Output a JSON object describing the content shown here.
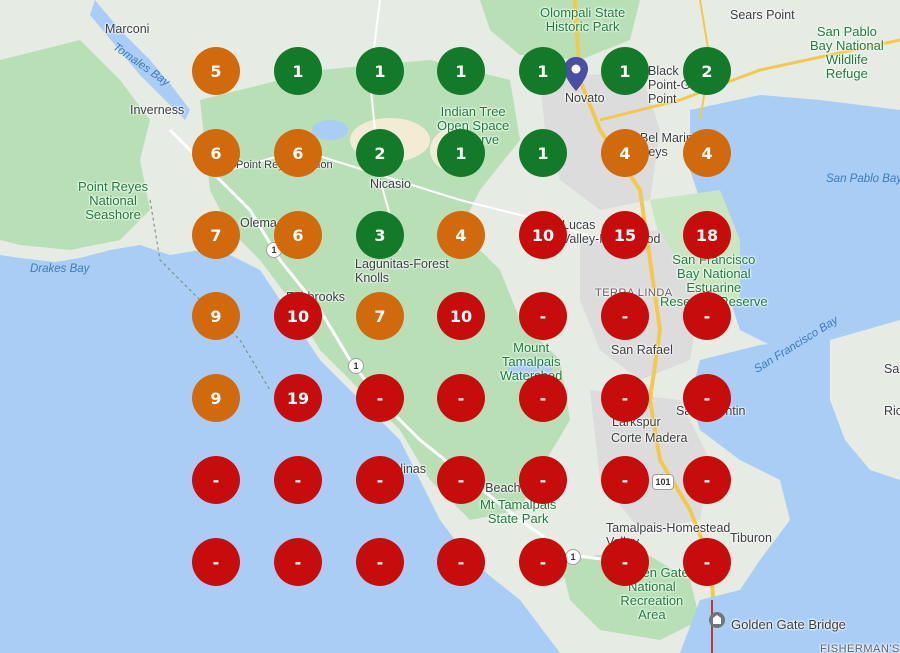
{
  "colors": {
    "green": "#137a2a",
    "orange": "#d06a0c",
    "red": "#c70c0c",
    "water": "#a9cdf5",
    "land": "#e6ebe3",
    "park": "#b9dfb7"
  },
  "labels": {
    "marconi": "Marconi",
    "tomales_bay": "Tomales Bay",
    "inverness": "Inverness",
    "point_reyes_1": "Point Reyes",
    "point_reyes_2": "National",
    "point_reyes_3": "Seashore",
    "point_reyes_station": "Point Reyes Station",
    "drakes_bay": "Drakes Bay",
    "olema": "Olema",
    "olompali_1": "Olompali State",
    "olompali_2": "Historic Park",
    "sears_point": "Sears Point",
    "sp_refuge_1": "San Pablo",
    "sp_refuge_2": "Bay National",
    "sp_refuge_3": "Wildlife",
    "sp_refuge_4": "Refuge",
    "novato": "Novato",
    "black_point_1": "Black",
    "black_point_2": "Point-Green",
    "black_point_3": "Point",
    "indian_tree_1": "Indian Tree",
    "indian_tree_2": "Open Space",
    "indian_tree_3": "Preserve",
    "bel_marin_1": "Bel Marin",
    "bel_marin_2": "Keys",
    "nicasio": "Nicasio",
    "san_pablo_bay": "San Pablo Bay",
    "lucas_valley_1": "Lucas",
    "lucas_valley_2": "Valley-Marinwood",
    "lagunitas_1": "Lagunitas-Forest",
    "lagunitas_2": "Knolls",
    "sf_bay_refuge_1": "San Francisco",
    "sf_bay_refuge_2": "Bay National",
    "sf_bay_refuge_3": "Estuarine",
    "sf_bay_refuge_4": "Research Reserve",
    "terra_linda": "TERRA LINDA",
    "fairbrooks": "Fairbrooks",
    "san_francisco_bay": "San Francisco Bay",
    "san_rafael": "San Rafael",
    "mt_tam_water_1": "Mount",
    "mt_tam_water_2": "Tamalpais",
    "mt_tam_water_3": "Watershed",
    "san_quentin": "San Quentin",
    "richmond": "Ric",
    "san_edge": "Sa",
    "larkspur": "Larkspur",
    "corte_madera": "Corte Madera",
    "bolinas": "Bolinas",
    "stinson_beach": "Stinson Beach",
    "mt_tam_park_1": "Mt Tamalpais",
    "mt_tam_park_2": "State Park",
    "tam_valley_1": "Tamalpais-Homestead",
    "tam_valley_2": "Valley",
    "tiburon": "Tiburon",
    "ggnra_1": "Golden Gate",
    "ggnra_2": "National",
    "ggnra_3": "Recreation",
    "ggnra_4": "Area",
    "golden_gate_bridge": "Golden Gate Bridge",
    "fisherman": "FISHERMAN'S"
  },
  "routes": {
    "r1a": "1",
    "r1b": "1",
    "r1c": "1",
    "r101": "101"
  },
  "icons": {
    "pin": "location-pin-icon",
    "landmark": "landmark-icon"
  },
  "grid": {
    "rows": [
      [
        {
          "value": "5",
          "level": "orange"
        },
        {
          "value": "1",
          "level": "green"
        },
        {
          "value": "1",
          "level": "green"
        },
        {
          "value": "1",
          "level": "green"
        },
        {
          "value": "1",
          "level": "green"
        },
        {
          "value": "1",
          "level": "green"
        },
        {
          "value": "2",
          "level": "green"
        }
      ],
      [
        {
          "value": "6",
          "level": "orange"
        },
        {
          "value": "6",
          "level": "orange"
        },
        {
          "value": "2",
          "level": "green"
        },
        {
          "value": "1",
          "level": "green"
        },
        {
          "value": "1",
          "level": "green"
        },
        {
          "value": "4",
          "level": "orange"
        },
        {
          "value": "4",
          "level": "orange"
        }
      ],
      [
        {
          "value": "7",
          "level": "orange"
        },
        {
          "value": "6",
          "level": "orange"
        },
        {
          "value": "3",
          "level": "green"
        },
        {
          "value": "4",
          "level": "orange"
        },
        {
          "value": "10",
          "level": "red"
        },
        {
          "value": "15",
          "level": "red"
        },
        {
          "value": "18",
          "level": "red"
        }
      ],
      [
        {
          "value": "9",
          "level": "orange"
        },
        {
          "value": "10",
          "level": "red"
        },
        {
          "value": "7",
          "level": "orange"
        },
        {
          "value": "10",
          "level": "red"
        },
        {
          "value": "-",
          "level": "red"
        },
        {
          "value": "-",
          "level": "red"
        },
        {
          "value": "-",
          "level": "red"
        }
      ],
      [
        {
          "value": "9",
          "level": "orange"
        },
        {
          "value": "19",
          "level": "red"
        },
        {
          "value": "-",
          "level": "red"
        },
        {
          "value": "-",
          "level": "red"
        },
        {
          "value": "-",
          "level": "red"
        },
        {
          "value": "-",
          "level": "red"
        },
        {
          "value": "-",
          "level": "red"
        }
      ],
      [
        {
          "value": "-",
          "level": "red"
        },
        {
          "value": "-",
          "level": "red"
        },
        {
          "value": "-",
          "level": "red"
        },
        {
          "value": "-",
          "level": "red"
        },
        {
          "value": "-",
          "level": "red"
        },
        {
          "value": "-",
          "level": "red"
        },
        {
          "value": "-",
          "level": "red"
        }
      ],
      [
        {
          "value": "-",
          "level": "red"
        },
        {
          "value": "-",
          "level": "red"
        },
        {
          "value": "-",
          "level": "red"
        },
        {
          "value": "-",
          "level": "red"
        },
        {
          "value": "-",
          "level": "red"
        },
        {
          "value": "-",
          "level": "red"
        },
        {
          "value": "-",
          "level": "red"
        }
      ]
    ]
  }
}
